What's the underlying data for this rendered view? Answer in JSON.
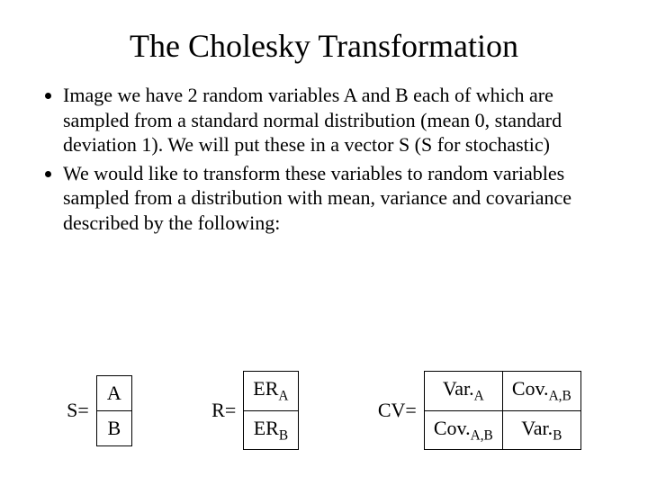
{
  "title": "The Cholesky Transformation",
  "bullets": [
    "Image we have 2 random variables A and B each of which are sampled from a standard normal distribution (mean 0, standard deviation 1). We will put these in a vector S (S for stochastic)",
    "We would like to transform these variables to random variables sampled from a distribution with mean, variance and covariance described by the following:"
  ],
  "labels": {
    "S": "S=",
    "R": "R=",
    "CV": "CV="
  },
  "S": {
    "r0": "A",
    "r1": "B"
  },
  "R": {
    "r0": {
      "pre": "ER",
      "sub": "A"
    },
    "r1": {
      "pre": "ER",
      "sub": "B"
    }
  },
  "CV": {
    "c00": {
      "pre": "Var.",
      "sub": "A"
    },
    "c01": {
      "pre": "Cov.",
      "sub": "A,B"
    },
    "c10": {
      "pre": "Cov.",
      "sub": "A,B"
    },
    "c11": {
      "pre": "Var.",
      "sub": "B"
    }
  },
  "style": {
    "background": "#ffffff",
    "text_color": "#000000",
    "title_fontsize": 36,
    "body_fontsize": 22,
    "font_family": "Times New Roman",
    "border_color": "#000000"
  }
}
